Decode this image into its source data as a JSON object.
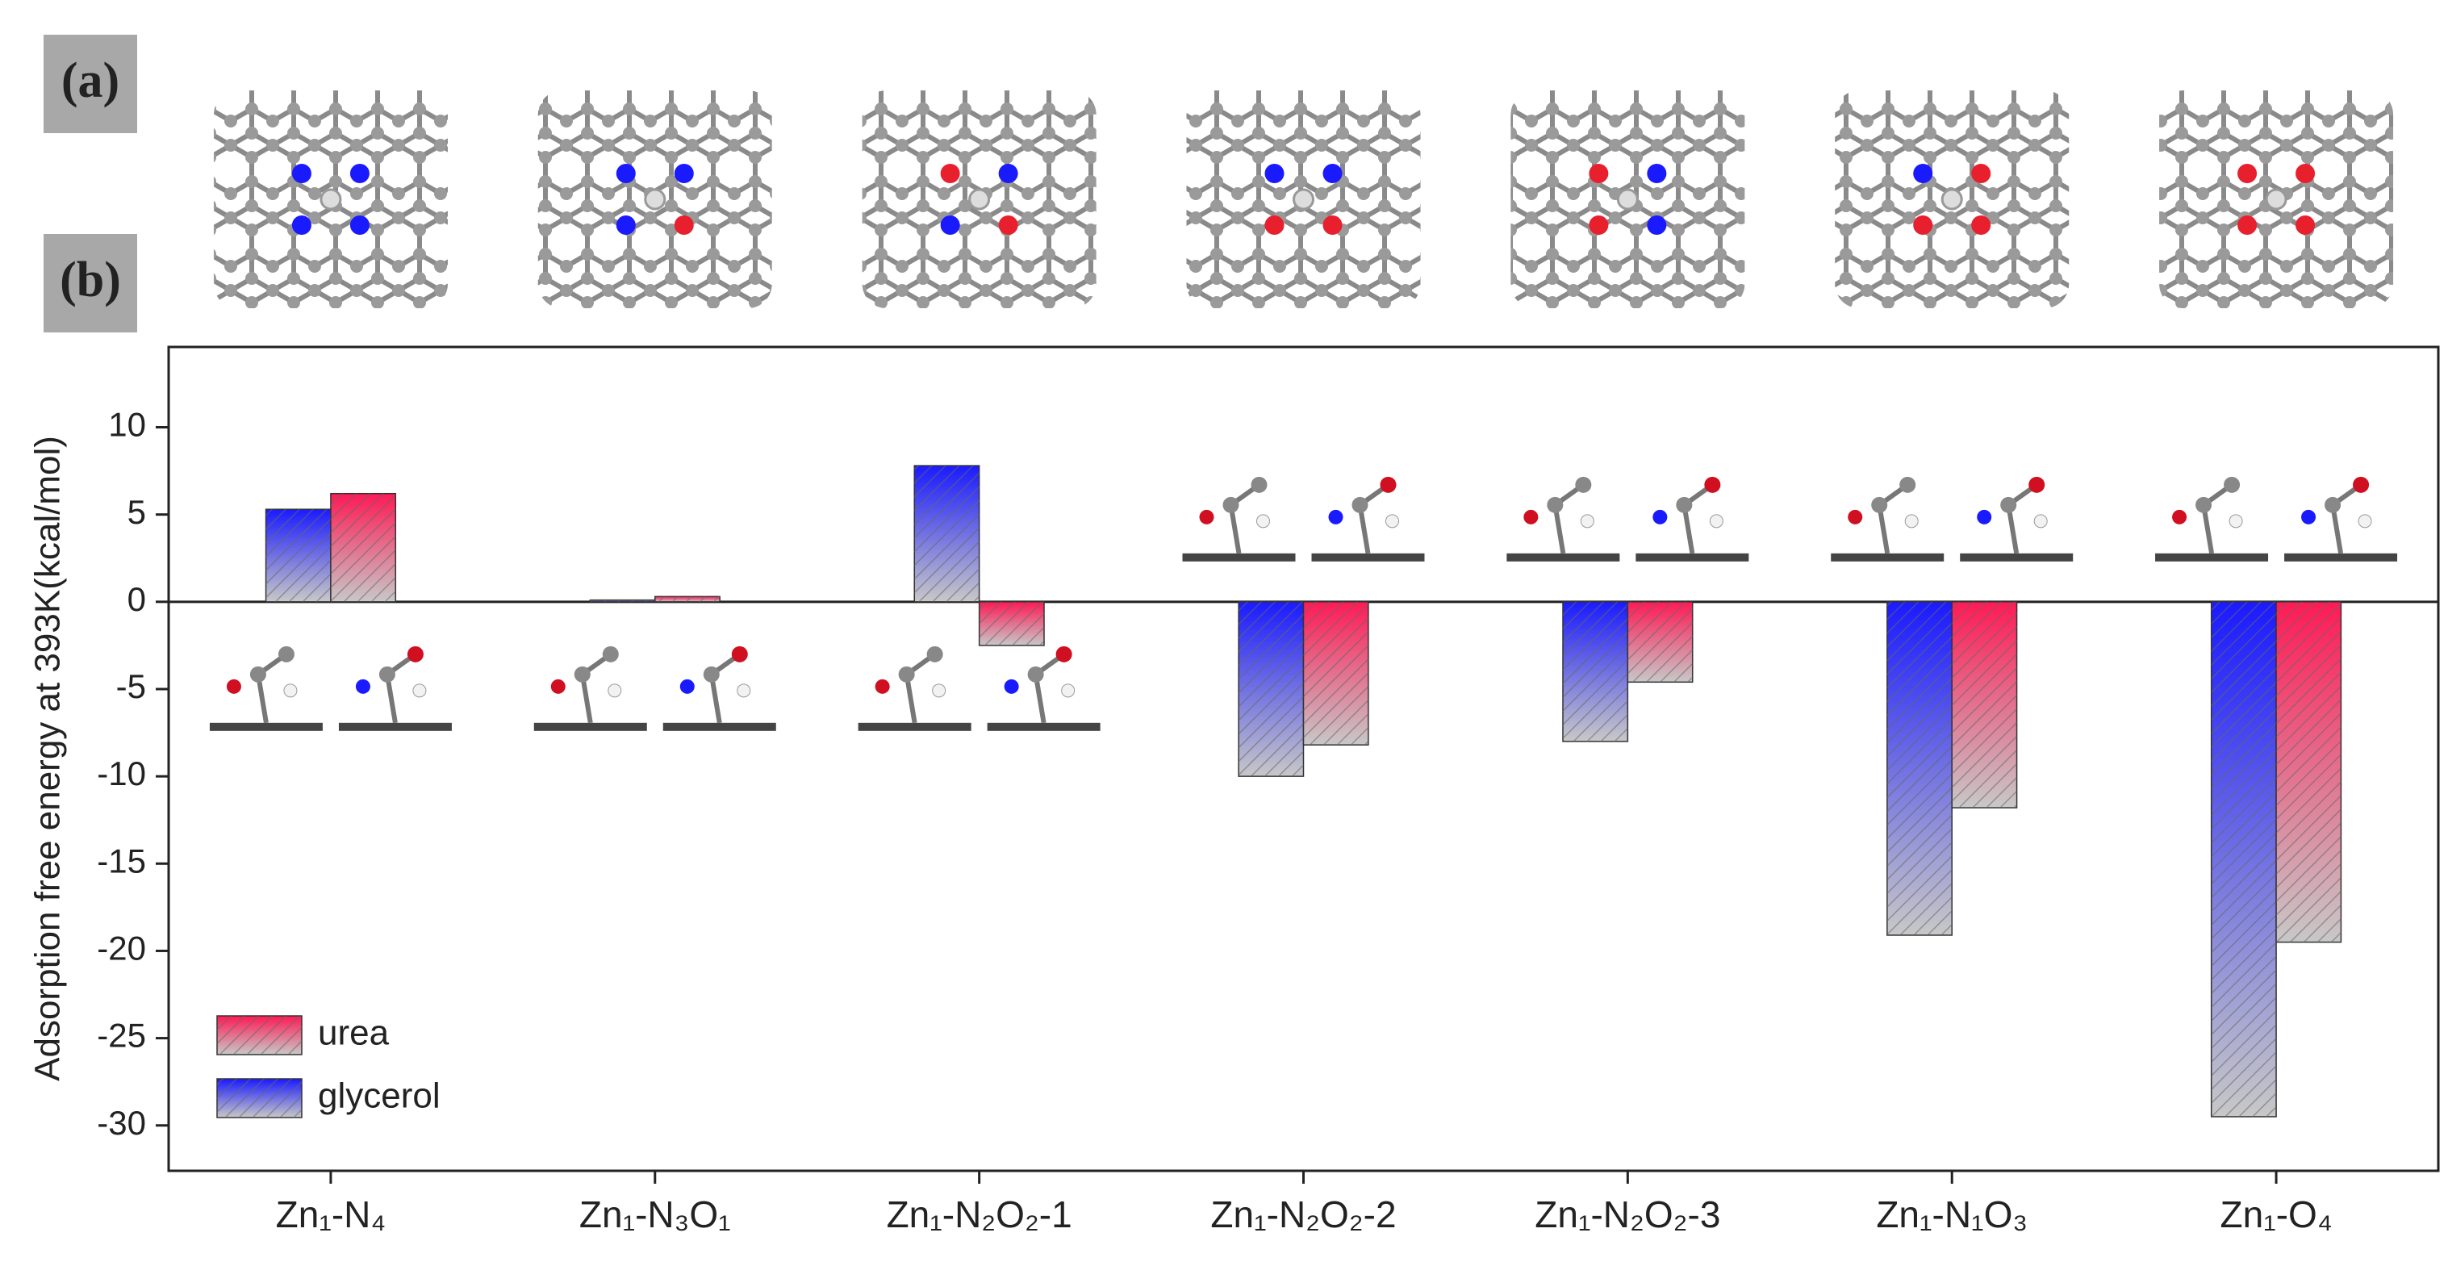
{
  "panel_a_label": "(a)",
  "panel_b_label": "(b)",
  "chart_data": {
    "type": "bar",
    "ylabel": "Adsorption free energy at 393K(kcal/mol)",
    "categories": [
      "Zn₁-N₄",
      "Zn₁-N₃O₁",
      "Zn₁-N₂O₂-1",
      "Zn₁-N₂O₂-2",
      "Zn₁-N₂O₂-3",
      "Zn₁-N₁O₃",
      "Zn₁-O₄"
    ],
    "series": [
      {
        "name": "glycerol",
        "color": "#1a1aff",
        "values": [
          5.3,
          0.1,
          7.8,
          -10.0,
          -8.0,
          -19.1,
          -29.5
        ]
      },
      {
        "name": "urea",
        "color": "#ff1a55",
        "values": [
          6.2,
          0.3,
          -2.5,
          -8.2,
          -4.6,
          -11.8,
          -19.5
        ]
      }
    ],
    "ylim": [
      -32.6,
      14.6
    ],
    "yticks": [
      -30,
      -25,
      -20,
      -15,
      -10,
      -5,
      0,
      5,
      10
    ],
    "legend": "lower left"
  }
}
